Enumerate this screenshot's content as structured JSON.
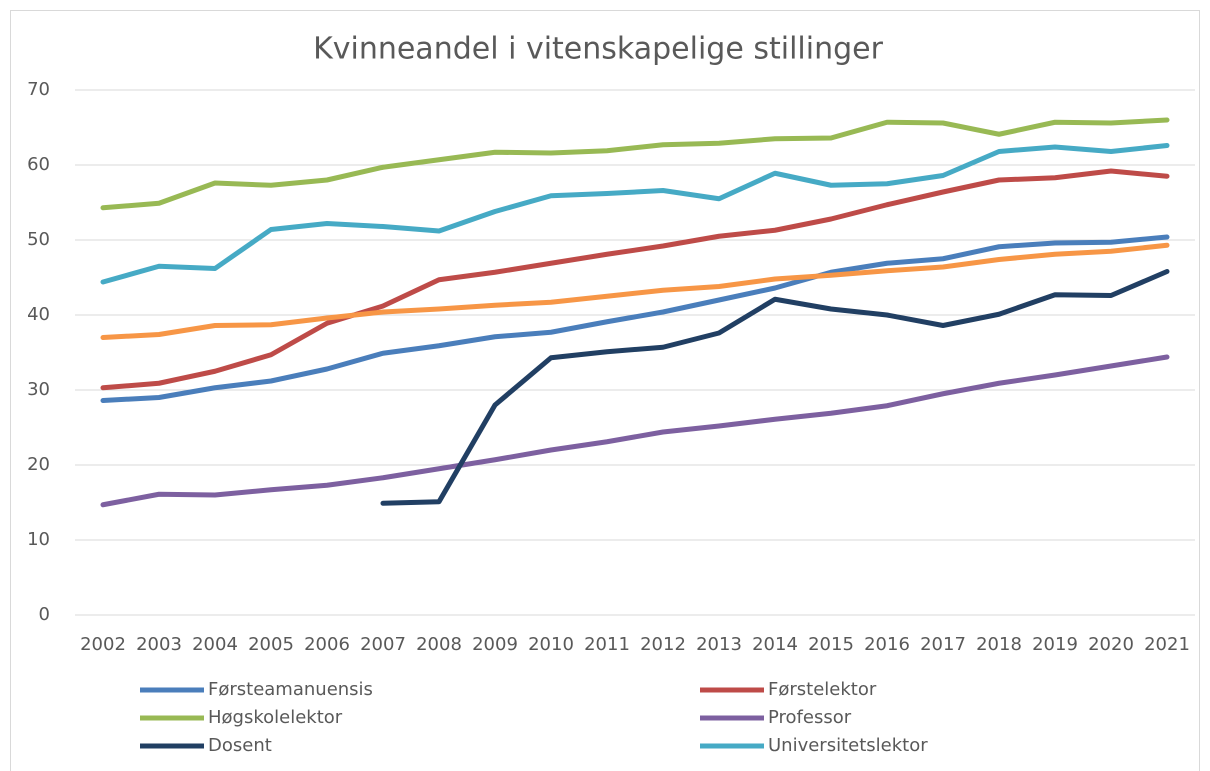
{
  "chart_data": {
    "type": "line",
    "title": "Kvinneandel i vitenskapelige stillinger",
    "categories": [
      "2002",
      "2003",
      "2004",
      "2005",
      "2006",
      "2007",
      "2008",
      "2009",
      "2010",
      "2011",
      "2012",
      "2013",
      "2014",
      "2015",
      "2016",
      "2017",
      "2018",
      "2019",
      "2020",
      "2021"
    ],
    "ylim": [
      0,
      70
    ],
    "yticks": [
      0,
      10,
      20,
      30,
      40,
      50,
      60,
      70
    ],
    "grid": true,
    "legend": "bottom",
    "series": [
      {
        "name": "Førsteamanuensis",
        "color": "#4a7ebb",
        "values": [
          28.6,
          29.0,
          30.3,
          31.2,
          32.8,
          34.9,
          35.9,
          37.1,
          37.7,
          39.1,
          40.4,
          42.0,
          43.6,
          45.7,
          46.9,
          47.5,
          49.1,
          49.6,
          49.7,
          50.4
        ]
      },
      {
        "name": "Førstelektor",
        "color": "#be4b48",
        "values": [
          30.3,
          30.9,
          32.5,
          34.7,
          38.9,
          41.2,
          44.7,
          45.7,
          46.9,
          48.1,
          49.2,
          50.5,
          51.3,
          52.8,
          54.7,
          56.4,
          58.0,
          58.3,
          59.2,
          58.5
        ]
      },
      {
        "name": "Høgskolelektor",
        "color": "#98b954",
        "values": [
          54.3,
          54.9,
          57.6,
          57.3,
          58.0,
          59.7,
          60.7,
          61.7,
          61.6,
          61.9,
          62.7,
          62.9,
          63.5,
          63.6,
          65.7,
          65.6,
          64.1,
          65.7,
          65.6,
          66.0
        ]
      },
      {
        "name": "Professor",
        "color": "#7d60a0",
        "values": [
          14.7,
          16.1,
          16.0,
          16.7,
          17.3,
          18.3,
          19.5,
          20.7,
          22.0,
          23.1,
          24.4,
          25.2,
          26.1,
          26.9,
          27.9,
          29.5,
          30.9,
          32.0,
          33.2,
          34.4
        ]
      },
      {
        "name": "Dosent",
        "color": "#213f63",
        "values": [
          null,
          null,
          null,
          null,
          null,
          14.9,
          15.1,
          28.0,
          34.3,
          35.1,
          35.7,
          37.6,
          42.1,
          40.8,
          40.0,
          38.6,
          40.1,
          42.7,
          42.6,
          45.8
        ]
      },
      {
        "name": "Universitetslektor",
        "color": "#46aac5",
        "values": [
          44.4,
          46.5,
          46.2,
          51.4,
          52.2,
          51.8,
          51.2,
          53.8,
          55.9,
          56.2,
          56.6,
          55.5,
          58.9,
          57.3,
          57.5,
          58.6,
          61.8,
          62.4,
          61.8,
          62.6
        ]
      },
      {
        "color": "#f79646",
        "values": [
          37.0,
          37.4,
          38.6,
          38.7,
          39.6,
          40.4,
          40.8,
          41.3,
          41.7,
          42.5,
          43.3,
          43.8,
          44.8,
          45.3,
          45.9,
          46.4,
          47.4,
          48.1,
          48.5,
          49.3
        ]
      }
    ]
  }
}
